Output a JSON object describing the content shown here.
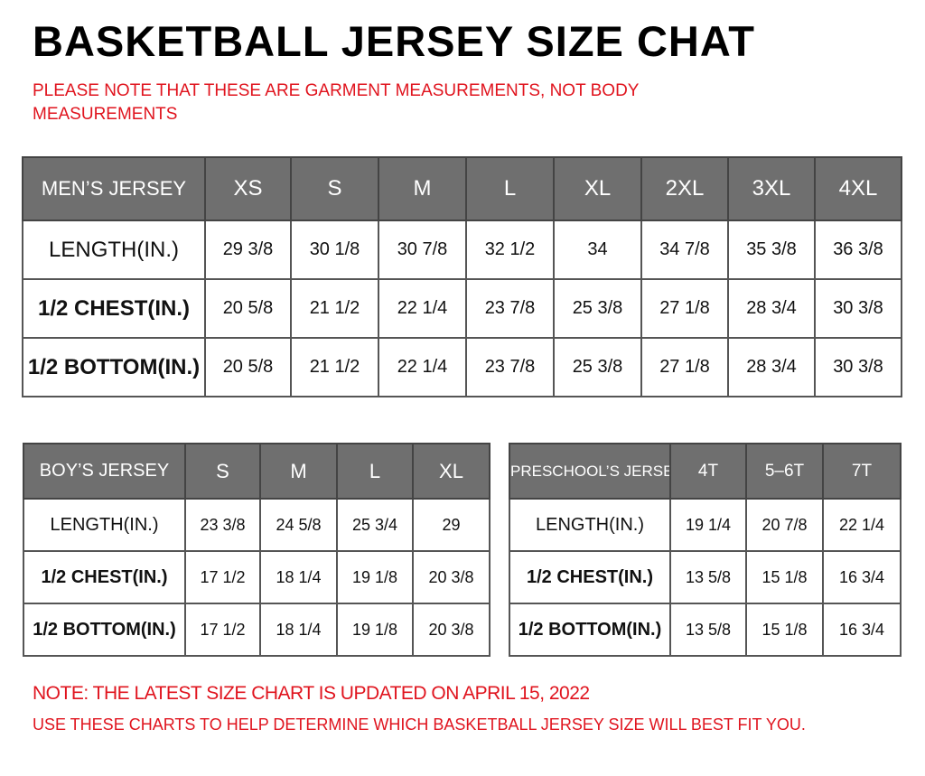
{
  "title": "BASKETBALL JERSEY SIZE CHAT",
  "subtitle": "PLEASE NOTE THAT THESE ARE GARMENT MEASUREMENTS, NOT BODY MEASUREMENTS",
  "tables": [
    {
      "header": [
        "MEN’S JERSEY",
        "XS",
        "S",
        "M",
        "L",
        "XL",
        "2XL",
        "3XL",
        "4XL"
      ],
      "rows": [
        [
          "LENGTH(IN.)",
          "29 3/8",
          "30 1/8",
          "30 7/8",
          "32 1/2",
          "34",
          "34 7/8",
          "35 3/8",
          "36 3/8"
        ],
        [
          "1/2 CHEST(IN.)",
          "20 5/8",
          "21 1/2",
          "22 1/4",
          "23 7/8",
          "25 3/8",
          "27 1/8",
          "28 3/4",
          "30 3/8"
        ],
        [
          "1/2 BOTTOM(IN.)",
          "20 5/8",
          "21 1/2",
          "22 1/4",
          "23 7/8",
          "25 3/8",
          "27 1/8",
          "28 3/4",
          "30 3/8"
        ]
      ]
    },
    {
      "header": [
        "BOY’S JERSEY",
        "S",
        "M",
        "L",
        "XL"
      ],
      "rows": [
        [
          "LENGTH(IN.)",
          "23 3/8",
          "24 5/8",
          "25 3/4",
          "29"
        ],
        [
          "1/2 CHEST(IN.)",
          "17 1/2",
          "18 1/4",
          "19 1/8",
          "20 3/8"
        ],
        [
          "1/2 BOTTOM(IN.)",
          "17 1/2",
          "18 1/4",
          "19 1/8",
          "20 3/8"
        ]
      ]
    },
    {
      "header": [
        "PRESCHOOL’S JERSEY",
        "4T",
        "5–6T",
        "7T"
      ],
      "rows": [
        [
          "LENGTH(IN.)",
          "19 1/4",
          "20 7/8",
          "22 1/4"
        ],
        [
          "1/2 CHEST(IN.)",
          "13 5/8",
          "15 1/8",
          "16 3/4"
        ],
        [
          "1/2 BOTTOM(IN.)",
          "13 5/8",
          "15 1/8",
          "16 3/4"
        ]
      ]
    }
  ],
  "notes": [
    "NOTE: THE LATEST SIZE CHART IS UPDATED ON APRIL 15, 2022",
    "USE THESE CHARTS TO HELP DETERMINE WHICH  BASKETBALL JERSEY  SIZE WILL BEST FIT YOU."
  ]
}
